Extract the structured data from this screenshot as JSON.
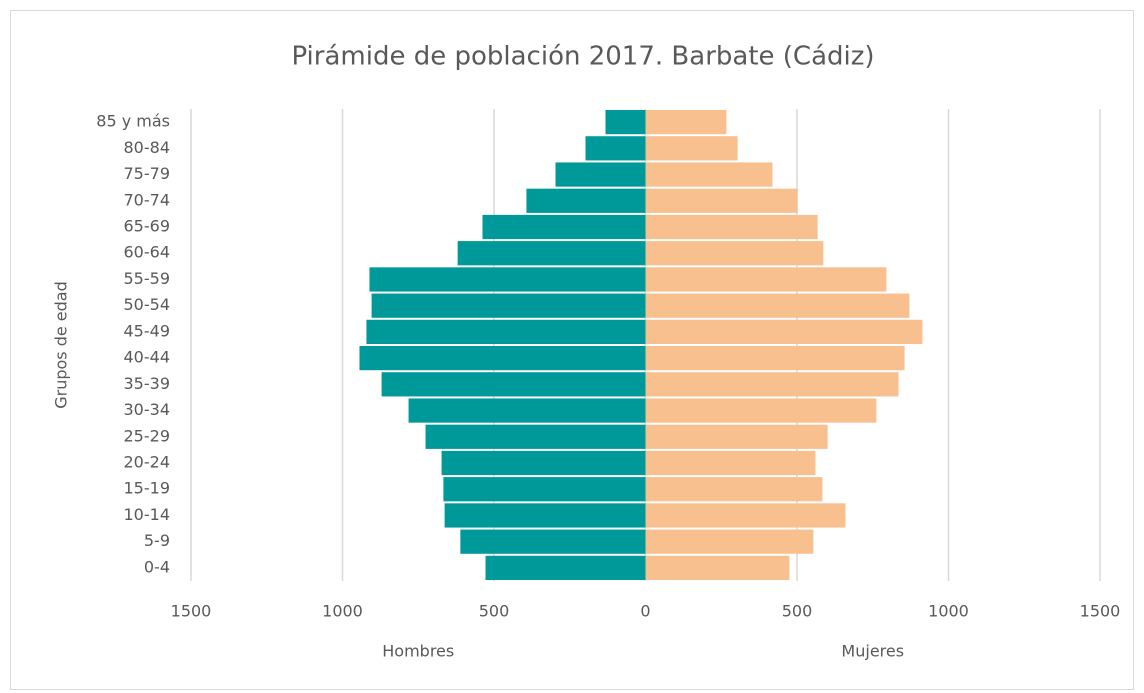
{
  "chart_data": {
    "type": "bar",
    "orientation": "horizontal",
    "stacked": true,
    "title": "Pirámide de población 2017. Barbate (Cádiz)",
    "y_label": "Grupos de edad",
    "categories": [
      "0-4",
      "5-9",
      "10-14",
      "15-19",
      "20-24",
      "25-29",
      "30-34",
      "35-39",
      "40-44",
      "45-49",
      "50-54",
      "55-59",
      "60-64",
      "65-69",
      "70-74",
      "75-79",
      "80-84",
      "85 y más"
    ],
    "series": [
      {
        "name": "Hombres",
        "color": "#00999a",
        "values": [
          -528,
          -611,
          -663,
          -667,
          -673,
          -726,
          -782,
          -871,
          -944,
          -921,
          -904,
          -911,
          -620,
          -538,
          -393,
          -297,
          -198,
          -132
        ]
      },
      {
        "name": "Mujeres",
        "color": "#f8bf8f",
        "values": [
          475,
          554,
          660,
          584,
          561,
          601,
          762,
          835,
          855,
          914,
          871,
          795,
          587,
          568,
          502,
          419,
          304,
          267
        ]
      }
    ],
    "xlim": [
      -1500,
      1500
    ],
    "xticks": [
      {
        "value": -1500,
        "label": "1500"
      },
      {
        "value": -1000,
        "label": "1000"
      },
      {
        "value": -500,
        "label": "500"
      },
      0,
      500,
      1000,
      1500
    ],
    "grid": true
  }
}
